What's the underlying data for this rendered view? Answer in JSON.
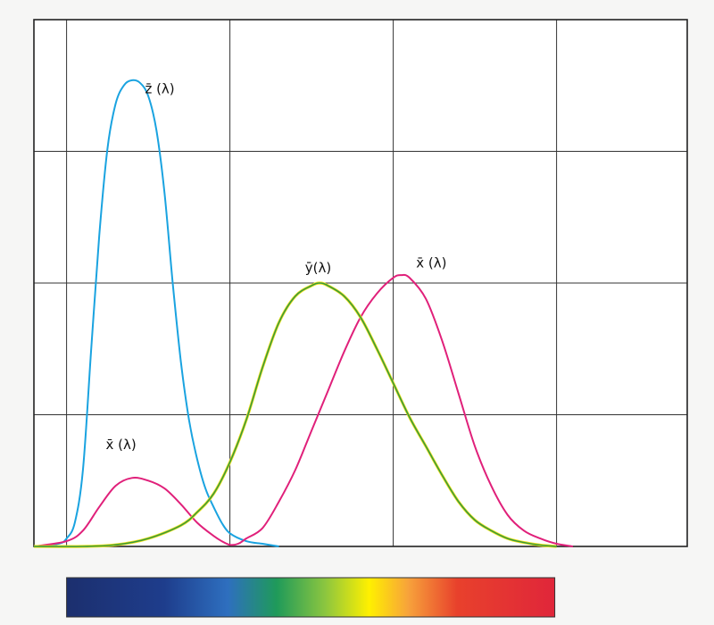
{
  "chart_data": {
    "type": "line",
    "title": "",
    "xlabel": "",
    "ylabel": "",
    "xlim": [
      380,
      780
    ],
    "ylim": [
      0,
      2
    ],
    "x_gridlines": [
      400,
      500,
      600,
      700
    ],
    "y_gridlines": [
      0.5,
      1.0,
      1.5,
      2.0
    ],
    "grid": true,
    "legend": "none",
    "series": [
      {
        "name": "z̄(λ)",
        "color": "#1aa3e0",
        "points": [
          [
            380,
            0.0
          ],
          [
            395,
            0.01
          ],
          [
            400,
            0.03
          ],
          [
            405,
            0.09
          ],
          [
            410,
            0.29
          ],
          [
            415,
            0.74
          ],
          [
            420,
            1.18
          ],
          [
            425,
            1.51
          ],
          [
            430,
            1.68
          ],
          [
            435,
            1.75
          ],
          [
            440,
            1.77
          ],
          [
            445,
            1.76
          ],
          [
            450,
            1.71
          ],
          [
            455,
            1.58
          ],
          [
            460,
            1.34
          ],
          [
            465,
            1.0
          ],
          [
            470,
            0.7
          ],
          [
            475,
            0.48
          ],
          [
            480,
            0.33
          ],
          [
            485,
            0.22
          ],
          [
            490,
            0.15
          ],
          [
            495,
            0.09
          ],
          [
            500,
            0.05
          ],
          [
            510,
            0.02
          ],
          [
            520,
            0.01
          ],
          [
            530,
            0.0
          ]
        ]
      },
      {
        "name": "x̄(λ)",
        "color": "#e0207a",
        "points": [
          [
            380,
            0.0
          ],
          [
            400,
            0.02
          ],
          [
            410,
            0.06
          ],
          [
            420,
            0.15
          ],
          [
            430,
            0.23
          ],
          [
            440,
            0.26
          ],
          [
            450,
            0.25
          ],
          [
            460,
            0.22
          ],
          [
            470,
            0.16
          ],
          [
            480,
            0.09
          ],
          [
            490,
            0.04
          ],
          [
            495,
            0.02
          ],
          [
            500,
            0.006
          ],
          [
            505,
            0.01
          ],
          [
            510,
            0.03
          ],
          [
            520,
            0.07
          ],
          [
            530,
            0.17
          ],
          [
            540,
            0.29
          ],
          [
            550,
            0.44
          ],
          [
            560,
            0.59
          ],
          [
            570,
            0.74
          ],
          [
            580,
            0.87
          ],
          [
            590,
            0.96
          ],
          [
            600,
            1.02
          ],
          [
            605,
            1.03
          ],
          [
            610,
            1.02
          ],
          [
            620,
            0.94
          ],
          [
            630,
            0.78
          ],
          [
            640,
            0.58
          ],
          [
            650,
            0.38
          ],
          [
            660,
            0.23
          ],
          [
            670,
            0.12
          ],
          [
            680,
            0.06
          ],
          [
            690,
            0.03
          ],
          [
            700,
            0.01
          ],
          [
            710,
            0.0
          ]
        ]
      },
      {
        "name": "ȳ(λ)",
        "color": "#3a9a3a",
        "points": [
          [
            380,
            0.0
          ],
          [
            410,
            0.0
          ],
          [
            430,
            0.006
          ],
          [
            450,
            0.03
          ],
          [
            470,
            0.08
          ],
          [
            480,
            0.13
          ],
          [
            490,
            0.2
          ],
          [
            500,
            0.32
          ],
          [
            510,
            0.48
          ],
          [
            520,
            0.68
          ],
          [
            530,
            0.85
          ],
          [
            540,
            0.95
          ],
          [
            550,
            0.99
          ],
          [
            555,
            1.0
          ],
          [
            560,
            0.99
          ],
          [
            570,
            0.95
          ],
          [
            580,
            0.87
          ],
          [
            590,
            0.75
          ],
          [
            600,
            0.62
          ],
          [
            610,
            0.49
          ],
          [
            620,
            0.38
          ],
          [
            630,
            0.27
          ],
          [
            640,
            0.17
          ],
          [
            650,
            0.1
          ],
          [
            660,
            0.06
          ],
          [
            670,
            0.03
          ],
          [
            680,
            0.015
          ],
          [
            690,
            0.005
          ],
          [
            700,
            0.0
          ]
        ]
      }
    ],
    "labels": [
      {
        "text": "z̄ (λ)",
        "x": 448,
        "y": 1.72
      },
      {
        "text": "ȳ(λ)",
        "x": 546,
        "y": 1.04
      },
      {
        "text": "x̄ (λ)",
        "x": 614,
        "y": 1.06
      },
      {
        "text": "x̄ (λ)",
        "x": 424,
        "y": 0.37
      }
    ],
    "spectrum_bar": {
      "x_start": 400,
      "x_end": 700,
      "stops": [
        {
          "pos": 0.0,
          "color": "#1c2f6e"
        },
        {
          "pos": 0.2,
          "color": "#1e3d8c"
        },
        {
          "pos": 0.33,
          "color": "#2e6fbf"
        },
        {
          "pos": 0.43,
          "color": "#1f9a5a"
        },
        {
          "pos": 0.53,
          "color": "#8cc63f"
        },
        {
          "pos": 0.62,
          "color": "#fff000"
        },
        {
          "pos": 0.7,
          "color": "#f7a23b"
        },
        {
          "pos": 0.8,
          "color": "#e8412c"
        },
        {
          "pos": 1.0,
          "color": "#e0263a"
        }
      ]
    }
  }
}
